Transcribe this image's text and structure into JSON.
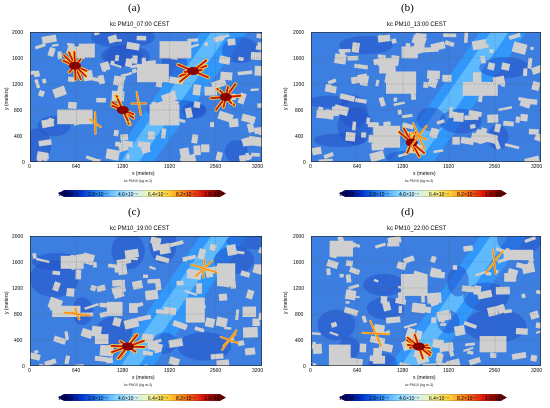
{
  "chart_data": [
    {
      "type": "heatmap",
      "panel_label": "(a)",
      "title": "kc PM10_07:00 CEST",
      "xlabel": "x (meters)",
      "ylabel": "y (meters)",
      "x_ticks": [
        "0",
        "640",
        "1280",
        "1920",
        "2560",
        "3200"
      ],
      "y_ticks": [
        "0",
        "400",
        "800",
        "1200",
        "1600",
        "2000"
      ],
      "xlim": [
        0,
        3200
      ],
      "ylim": [
        0,
        2000
      ],
      "colorbar_title": "kc PM10 (kg m-3)",
      "colorbar_ticks": [
        "1.0×10⁻⁹",
        "2.8×10⁻⁷",
        "4.6×10⁻⁷",
        "6.4×10⁻⁷",
        "8.2×10⁻⁷",
        "1.0×10⁻⁶"
      ],
      "colormap": [
        "#00006a",
        "#0033cc",
        "#2b8cff",
        "#7fd1ff",
        "#c8f0ff",
        "#f4f7a8",
        "#ffd23a",
        "#ff7a18",
        "#d8140a",
        "#6a0000"
      ],
      "building_color": "#cfcfcf",
      "grid": true,
      "hotspots": [
        [
          620,
          1480,
          "high"
        ],
        [
          1280,
          800,
          "high"
        ],
        [
          2250,
          1400,
          "high"
        ],
        [
          2700,
          1000,
          "high"
        ],
        [
          1500,
          900,
          "med"
        ],
        [
          900,
          600,
          "med"
        ]
      ]
    },
    {
      "type": "heatmap",
      "panel_label": "(b)",
      "title": "kc PM10_13:00 CEST",
      "xlabel": "x (meters)",
      "ylabel": "y (meters)",
      "x_ticks": [
        "0",
        "640",
        "1280",
        "1920",
        "2560",
        "3200"
      ],
      "y_ticks": [
        "0",
        "400",
        "800",
        "1200",
        "1600",
        "2000"
      ],
      "xlim": [
        0,
        3200
      ],
      "ylim": [
        0,
        2000
      ],
      "colorbar_title": "kc PM10 (kg m-3)",
      "colorbar_ticks": [
        "1.0×10⁻⁹",
        "2.8×10⁻⁷",
        "4.6×10⁻⁷",
        "6.4×10⁻⁷",
        "8.2×10⁻⁷",
        "1.0×10⁻⁶"
      ],
      "colormap": [
        "#00006a",
        "#0033cc",
        "#2b8cff",
        "#7fd1ff",
        "#c8f0ff",
        "#f4f7a8",
        "#ffd23a",
        "#ff7a18",
        "#d8140a",
        "#6a0000"
      ],
      "building_color": "#cfcfcf",
      "grid": true,
      "hotspots": [
        [
          1400,
          300,
          "high"
        ],
        [
          1500,
          400,
          "med"
        ]
      ]
    },
    {
      "type": "heatmap",
      "panel_label": "(c)",
      "title": "kc PM10_19:00 CEST",
      "xlabel": "x (meters)",
      "ylabel": "y (meters)",
      "x_ticks": [
        "0",
        "640",
        "1280",
        "1920",
        "2560",
        "3200"
      ],
      "y_ticks": [
        "0",
        "400",
        "800",
        "1200",
        "1600",
        "2000"
      ],
      "xlim": [
        0,
        3200
      ],
      "ylim": [
        0,
        2000
      ],
      "colorbar_title": "kc PM10 (kg m-3)",
      "colorbar_ticks": [
        "1.0×10⁻⁹",
        "2.8×10⁻⁷",
        "4.6×10⁻⁷",
        "6.4×10⁻⁷",
        "8.2×10⁻⁷",
        "1.0×10⁻⁶"
      ],
      "colormap": [
        "#00006a",
        "#0033cc",
        "#2b8cff",
        "#7fd1ff",
        "#c8f0ff",
        "#f4f7a8",
        "#ffd23a",
        "#ff7a18",
        "#d8140a",
        "#6a0000"
      ],
      "building_color": "#cfcfcf",
      "grid": true,
      "hotspots": [
        [
          1350,
          300,
          "high"
        ],
        [
          650,
          800,
          "med"
        ],
        [
          2400,
          1500,
          "med"
        ],
        [
          2750,
          400,
          "med"
        ]
      ]
    },
    {
      "type": "heatmap",
      "panel_label": "(d)",
      "title": "kc PM10_22:00 CEST",
      "xlabel": "x (meters)",
      "ylabel": "y (meters)",
      "x_ticks": [
        "0",
        "640",
        "1280",
        "1920",
        "2560",
        "3200"
      ],
      "y_ticks": [
        "0",
        "400",
        "800",
        "1200",
        "1600",
        "2000"
      ],
      "xlim": [
        0,
        3200
      ],
      "ylim": [
        0,
        2000
      ],
      "colorbar_title": "kc PM10 (kg m-3)",
      "colorbar_ticks": [
        "1.0×10⁻⁹",
        "2.8×10⁻⁷",
        "4.6×10⁻⁷",
        "6.4×10⁻⁷",
        "8.2×10⁻⁷",
        "1.0×10⁻⁶"
      ],
      "colormap": [
        "#00006a",
        "#0033cc",
        "#2b8cff",
        "#7fd1ff",
        "#c8f0ff",
        "#f4f7a8",
        "#ffd23a",
        "#ff7a18",
        "#d8140a",
        "#6a0000"
      ],
      "building_color": "#cfcfcf",
      "grid": true,
      "hotspots": [
        [
          1500,
          300,
          "high"
        ],
        [
          900,
          500,
          "med"
        ],
        [
          2550,
          1600,
          "med"
        ]
      ]
    }
  ]
}
